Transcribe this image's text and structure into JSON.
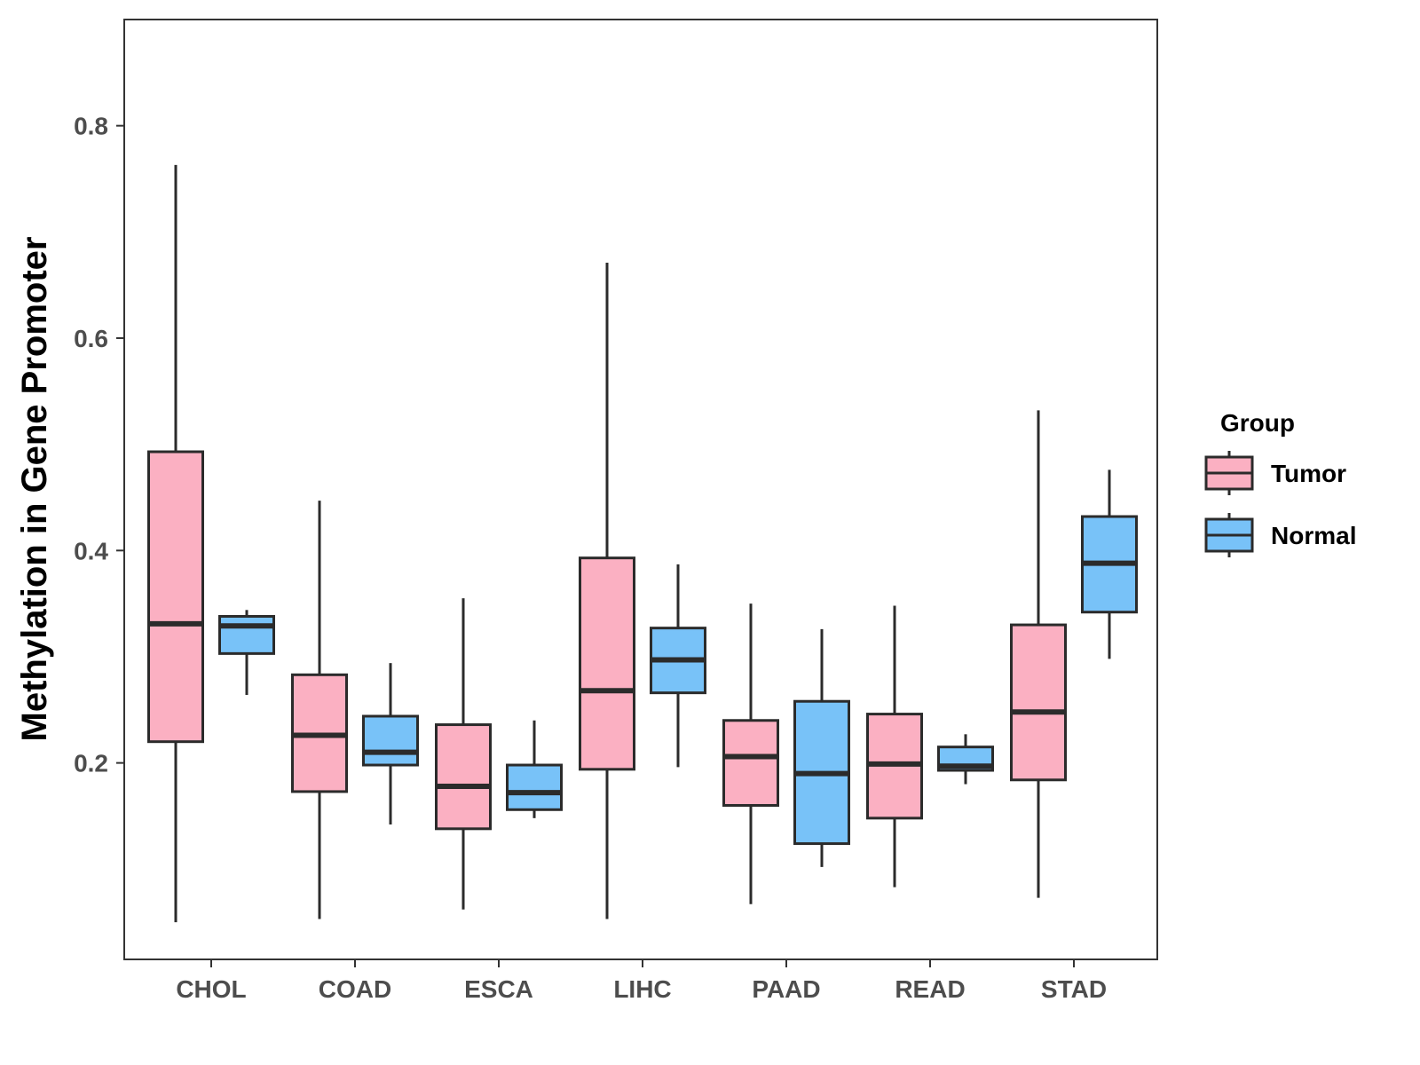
{
  "chart_data": {
    "type": "boxplot",
    "title": "",
    "xlabel": "",
    "ylabel": "Methylation in Gene Promoter",
    "ylim": [
      0.015,
      0.9
    ],
    "yticks": [
      0.2,
      0.4,
      0.6,
      0.8
    ],
    "ytick_labels": [
      "0.2",
      "0.4",
      "0.6",
      "0.8"
    ],
    "categories": [
      "CHOL",
      "COAD",
      "ESCA",
      "LIHC",
      "PAAD",
      "READ",
      "STAD"
    ],
    "legend": {
      "title": "Group",
      "position": "right",
      "entries": [
        {
          "name": "Tumor",
          "color": "#FBB0C2"
        },
        {
          "name": "Normal",
          "color": "#78C2F8"
        }
      ]
    },
    "series": [
      {
        "name": "Tumor",
        "color": "#FBB0C2",
        "boxes": [
          {
            "category": "CHOL",
            "min": 0.05,
            "q1": 0.22,
            "median": 0.331,
            "q3": 0.493,
            "max": 0.763
          },
          {
            "category": "COAD",
            "min": 0.053,
            "q1": 0.173,
            "median": 0.226,
            "q3": 0.283,
            "max": 0.447
          },
          {
            "category": "ESCA",
            "min": 0.062,
            "q1": 0.138,
            "median": 0.178,
            "q3": 0.236,
            "max": 0.355
          },
          {
            "category": "LIHC",
            "min": 0.053,
            "q1": 0.194,
            "median": 0.268,
            "q3": 0.393,
            "max": 0.671
          },
          {
            "category": "PAAD",
            "min": 0.067,
            "q1": 0.16,
            "median": 0.206,
            "q3": 0.24,
            "max": 0.35
          },
          {
            "category": "READ",
            "min": 0.083,
            "q1": 0.148,
            "median": 0.199,
            "q3": 0.246,
            "max": 0.348
          },
          {
            "category": "STAD",
            "min": 0.073,
            "q1": 0.184,
            "median": 0.248,
            "q3": 0.33,
            "max": 0.532
          }
        ]
      },
      {
        "name": "Normal",
        "color": "#78C2F8",
        "boxes": [
          {
            "category": "CHOL",
            "min": 0.264,
            "q1": 0.303,
            "median": 0.329,
            "q3": 0.338,
            "max": 0.344
          },
          {
            "category": "COAD",
            "min": 0.142,
            "q1": 0.198,
            "median": 0.21,
            "q3": 0.244,
            "max": 0.294
          },
          {
            "category": "ESCA",
            "min": 0.148,
            "q1": 0.156,
            "median": 0.172,
            "q3": 0.198,
            "max": 0.24
          },
          {
            "category": "LIHC",
            "min": 0.196,
            "q1": 0.266,
            "median": 0.297,
            "q3": 0.327,
            "max": 0.387
          },
          {
            "category": "PAAD",
            "min": 0.102,
            "q1": 0.124,
            "median": 0.19,
            "q3": 0.258,
            "max": 0.326
          },
          {
            "category": "READ",
            "min": 0.18,
            "q1": 0.193,
            "median": 0.197,
            "q3": 0.215,
            "max": 0.227
          },
          {
            "category": "STAD",
            "min": 0.298,
            "q1": 0.342,
            "median": 0.388,
            "q3": 0.432,
            "max": 0.476
          }
        ]
      }
    ]
  }
}
